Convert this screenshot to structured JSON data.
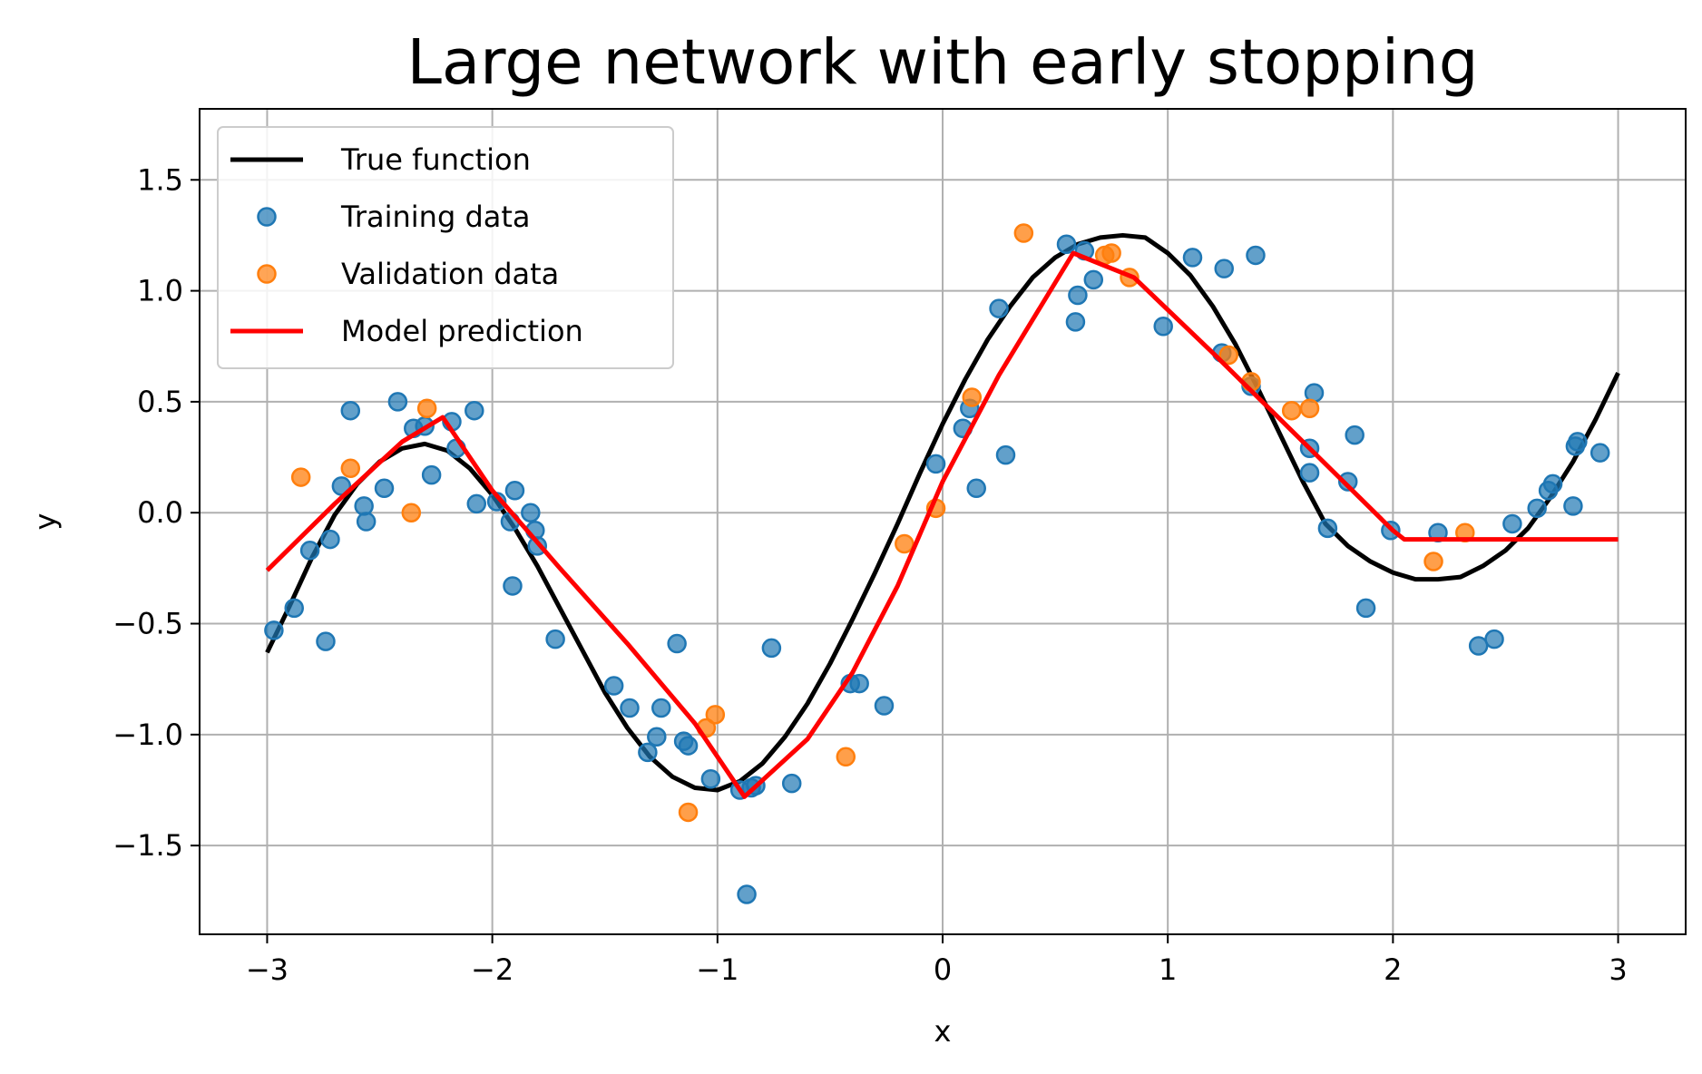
{
  "chart_data": {
    "type": "scatter",
    "title": "Large network with early stopping",
    "xlabel": "x",
    "ylabel": "y",
    "xlim": [
      -3.3,
      3.3
    ],
    "ylim": [
      -1.9,
      1.82
    ],
    "xticks": [
      -3,
      -2,
      -1,
      0,
      1,
      2,
      3
    ],
    "xtick_labels": [
      "−3",
      "−2",
      "−1",
      "0",
      "1",
      "2",
      "3"
    ],
    "yticks": [
      -1.5,
      -1.0,
      -0.5,
      0.0,
      0.5,
      1.0,
      1.5
    ],
    "ytick_labels": [
      "−1.5",
      "−1.0",
      "−0.5",
      "0.0",
      "0.5",
      "1.0",
      "1.5"
    ],
    "grid": true,
    "legend_position": "upper-left",
    "colors": {
      "true_function": "#000000",
      "training": "#1f77b4",
      "validation": "#ff7f0e",
      "prediction": "#ff0000"
    },
    "true_function": {
      "name": "True function",
      "x": [
        -3.0,
        -2.9,
        -2.8,
        -2.7,
        -2.6,
        -2.5,
        -2.4,
        -2.3,
        -2.2,
        -2.1,
        -2.0,
        -1.9,
        -1.8,
        -1.7,
        -1.6,
        -1.5,
        -1.4,
        -1.3,
        -1.2,
        -1.1,
        -1.0,
        -0.9,
        -0.8,
        -0.7,
        -0.6,
        -0.5,
        -0.4,
        -0.3,
        -0.2,
        -0.1,
        0.0,
        0.1,
        0.2,
        0.3,
        0.4,
        0.5,
        0.6,
        0.7,
        0.8,
        0.9,
        1.0,
        1.1,
        1.2,
        1.3,
        1.4,
        1.5,
        1.6,
        1.7,
        1.8,
        1.9,
        2.0,
        2.1,
        2.2,
        2.3,
        2.4,
        2.5,
        2.6,
        2.7,
        2.8,
        2.9,
        3.0
      ],
      "y": [
        -0.63,
        -0.42,
        -0.2,
        -0.01,
        0.13,
        0.23,
        0.29,
        0.31,
        0.28,
        0.2,
        0.08,
        -0.07,
        -0.24,
        -0.43,
        -0.62,
        -0.81,
        -0.97,
        -1.1,
        -1.19,
        -1.24,
        -1.25,
        -1.21,
        -1.13,
        -1.01,
        -0.86,
        -0.68,
        -0.48,
        -0.27,
        -0.05,
        0.18,
        0.4,
        0.6,
        0.78,
        0.93,
        1.06,
        1.15,
        1.21,
        1.24,
        1.25,
        1.24,
        1.17,
        1.07,
        0.93,
        0.76,
        0.56,
        0.35,
        0.14,
        -0.05,
        -0.15,
        -0.22,
        -0.27,
        -0.3,
        -0.3,
        -0.29,
        -0.24,
        -0.17,
        -0.07,
        0.07,
        0.23,
        0.42,
        0.63
      ]
    },
    "training_data": {
      "name": "Training data",
      "points": [
        [
          -2.97,
          -0.53
        ],
        [
          -2.88,
          -0.43
        ],
        [
          -2.81,
          -0.17
        ],
        [
          -2.74,
          -0.58
        ],
        [
          -2.72,
          -0.12
        ],
        [
          -2.67,
          0.12
        ],
        [
          -2.63,
          0.46
        ],
        [
          -2.57,
          0.03
        ],
        [
          -2.56,
          -0.04
        ],
        [
          -2.48,
          0.11
        ],
        [
          -2.42,
          0.5
        ],
        [
          -2.35,
          0.38
        ],
        [
          -2.3,
          0.39
        ],
        [
          -2.27,
          0.17
        ],
        [
          -2.18,
          0.41
        ],
        [
          -2.16,
          0.29
        ],
        [
          -2.08,
          0.46
        ],
        [
          -2.07,
          0.04
        ],
        [
          -1.98,
          0.05
        ],
        [
          -1.92,
          -0.04
        ],
        [
          -1.91,
          -0.33
        ],
        [
          -1.9,
          0.1
        ],
        [
          -1.83,
          0.0
        ],
        [
          -1.81,
          -0.08
        ],
        [
          -1.8,
          -0.15
        ],
        [
          -1.72,
          -0.57
        ],
        [
          -1.46,
          -0.78
        ],
        [
          -1.39,
          -0.88
        ],
        [
          -1.31,
          -1.08
        ],
        [
          -1.27,
          -1.01
        ],
        [
          -1.25,
          -0.88
        ],
        [
          -1.18,
          -0.59
        ],
        [
          -1.15,
          -1.03
        ],
        [
          -1.13,
          -1.05
        ],
        [
          -1.03,
          -1.2
        ],
        [
          -0.9,
          -1.25
        ],
        [
          -0.87,
          -1.72
        ],
        [
          -0.85,
          -1.24
        ],
        [
          -0.83,
          -1.23
        ],
        [
          -0.76,
          -0.61
        ],
        [
          -0.67,
          -1.22
        ],
        [
          -0.41,
          -0.77
        ],
        [
          -0.37,
          -0.77
        ],
        [
          -0.26,
          -0.87
        ],
        [
          -0.03,
          0.22
        ],
        [
          0.09,
          0.38
        ],
        [
          0.12,
          0.47
        ],
        [
          0.15,
          0.11
        ],
        [
          0.25,
          0.92
        ],
        [
          0.28,
          0.26
        ],
        [
          0.55,
          1.21
        ],
        [
          0.59,
          0.86
        ],
        [
          0.6,
          0.98
        ],
        [
          0.63,
          1.18
        ],
        [
          0.67,
          1.05
        ],
        [
          0.98,
          0.84
        ],
        [
          1.11,
          1.15
        ],
        [
          1.24,
          0.72
        ],
        [
          1.25,
          1.1
        ],
        [
          1.37,
          0.57
        ],
        [
          1.39,
          1.16
        ],
        [
          1.63,
          0.18
        ],
        [
          1.63,
          0.29
        ],
        [
          1.65,
          0.54
        ],
        [
          1.71,
          -0.07
        ],
        [
          1.8,
          0.14
        ],
        [
          1.83,
          0.35
        ],
        [
          1.88,
          -0.43
        ],
        [
          1.99,
          -0.08
        ],
        [
          2.2,
          -0.09
        ],
        [
          2.38,
          -0.6
        ],
        [
          2.45,
          -0.57
        ],
        [
          2.53,
          -0.05
        ],
        [
          2.64,
          0.02
        ],
        [
          2.69,
          0.1
        ],
        [
          2.71,
          0.13
        ],
        [
          2.8,
          0.03
        ],
        [
          2.81,
          0.3
        ],
        [
          2.82,
          0.32
        ],
        [
          2.92,
          0.27
        ]
      ]
    },
    "validation_data": {
      "name": "Validation data",
      "points": [
        [
          -2.85,
          0.16
        ],
        [
          -2.63,
          0.2
        ],
        [
          -2.36,
          0.0
        ],
        [
          -2.29,
          0.47
        ],
        [
          -1.13,
          -1.35
        ],
        [
          -1.05,
          -0.97
        ],
        [
          -1.01,
          -0.91
        ],
        [
          -0.43,
          -1.1
        ],
        [
          -0.17,
          -0.14
        ],
        [
          -0.03,
          0.02
        ],
        [
          0.13,
          0.52
        ],
        [
          0.36,
          1.26
        ],
        [
          0.72,
          1.16
        ],
        [
          0.75,
          1.17
        ],
        [
          0.83,
          1.06
        ],
        [
          1.27,
          0.71
        ],
        [
          1.37,
          0.59
        ],
        [
          1.55,
          0.46
        ],
        [
          1.63,
          0.47
        ],
        [
          2.18,
          -0.22
        ],
        [
          2.32,
          -0.09
        ]
      ]
    },
    "model_prediction": {
      "name": "Model prediction",
      "x": [
        -3.0,
        -2.7,
        -2.4,
        -2.22,
        -2.0,
        -1.7,
        -1.4,
        -1.1,
        -0.88,
        -0.6,
        -0.4,
        -0.2,
        0.0,
        0.25,
        0.58,
        0.85,
        1.2,
        1.6,
        2.0,
        2.05,
        2.5,
        3.0
      ],
      "y": [
        -0.26,
        0.04,
        0.32,
        0.43,
        0.1,
        -0.25,
        -0.59,
        -0.95,
        -1.28,
        -1.02,
        -0.72,
        -0.33,
        0.14,
        0.62,
        1.17,
        1.06,
        0.72,
        0.32,
        -0.08,
        -0.12,
        -0.12,
        -0.12
      ]
    }
  }
}
